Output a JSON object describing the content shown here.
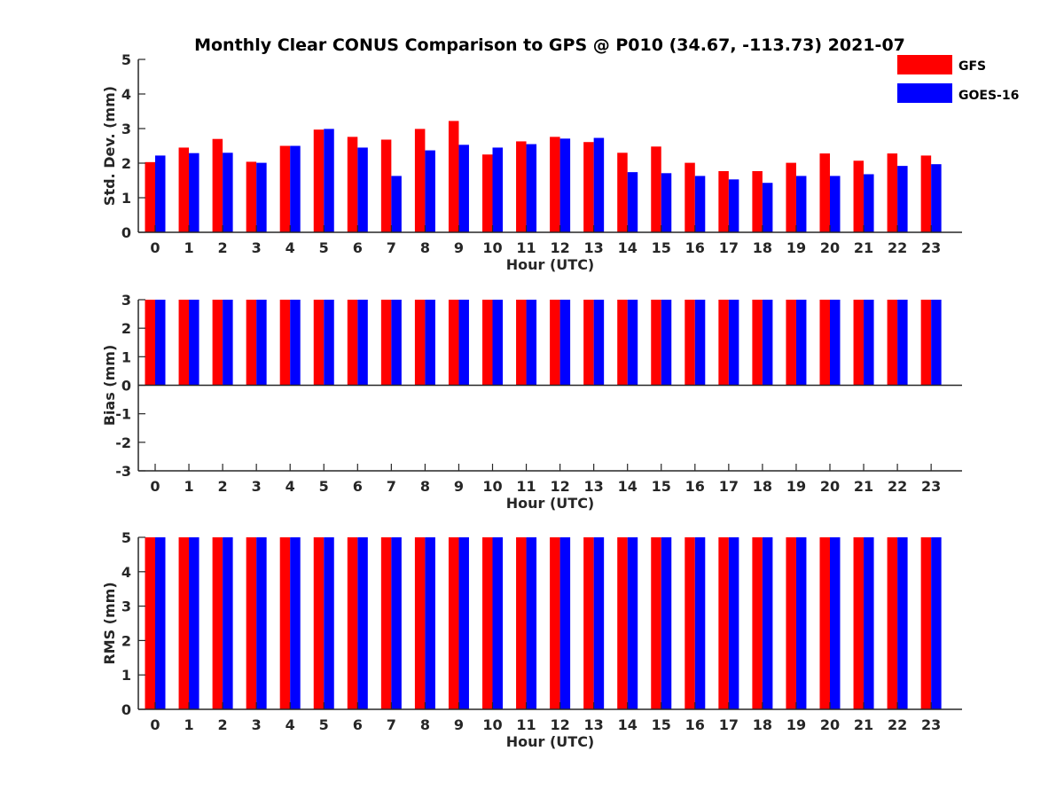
{
  "title": "Monthly Clear CONUS Comparison to GPS @ P010 (34.67, -113.73) 2021-07",
  "legend": [
    {
      "label": "GFS",
      "color": "#ff0000"
    },
    {
      "label": "GOES-16",
      "color": "#0000ff"
    }
  ],
  "chart_data": [
    {
      "type": "bar",
      "categories": [
        "0",
        "1",
        "2",
        "3",
        "4",
        "5",
        "6",
        "7",
        "8",
        "9",
        "10",
        "11",
        "12",
        "13",
        "14",
        "15",
        "16",
        "17",
        "18",
        "19",
        "20",
        "21",
        "22",
        "23"
      ],
      "xlabel": "Hour (UTC)",
      "ylabel": "Std. Dev. (mm)",
      "ylim": [
        0,
        5
      ],
      "yticks": [
        "0",
        "1",
        "2",
        "3",
        "4",
        "5"
      ],
      "series": [
        {
          "name": "GFS",
          "color": "#ff0000",
          "values": [
            2.03,
            2.45,
            2.7,
            2.04,
            2.5,
            2.97,
            2.76,
            2.68,
            2.99,
            3.22,
            2.25,
            2.63,
            2.76,
            2.61,
            2.3,
            2.48,
            2.01,
            1.77,
            1.77,
            2.01,
            2.28,
            2.07,
            2.28,
            2.22
          ]
        },
        {
          "name": "GOES-16",
          "color": "#0000ff",
          "values": [
            2.22,
            2.29,
            2.3,
            2.01,
            2.5,
            2.99,
            2.45,
            1.63,
            2.37,
            2.53,
            2.45,
            2.55,
            2.71,
            2.73,
            1.74,
            1.71,
            1.63,
            1.53,
            1.43,
            1.63,
            1.63,
            1.68,
            1.92,
            1.97
          ]
        }
      ]
    },
    {
      "type": "bar",
      "categories": [
        "0",
        "1",
        "2",
        "3",
        "4",
        "5",
        "6",
        "7",
        "8",
        "9",
        "10",
        "11",
        "12",
        "13",
        "14",
        "15",
        "16",
        "17",
        "18",
        "19",
        "20",
        "21",
        "22",
        "23"
      ],
      "xlabel": "Hour (UTC)",
      "ylabel": "Bias (mm)",
      "ylim": [
        -3,
        3
      ],
      "yticks": [
        "-3",
        "-2",
        "-1",
        "0",
        "1",
        "2",
        "3"
      ],
      "series": [
        {
          "name": "GFS",
          "color": "#ff0000",
          "values": [
            3,
            3,
            3,
            3,
            3,
            3,
            3,
            3,
            3,
            3,
            3,
            3,
            3,
            3,
            3,
            3,
            3,
            3,
            3,
            3,
            3,
            3,
            3,
            3
          ]
        },
        {
          "name": "GOES-16",
          "color": "#0000ff",
          "values": [
            3,
            3,
            3,
            3,
            3,
            3,
            3,
            3,
            3,
            3,
            3,
            3,
            3,
            3,
            3,
            3,
            3,
            3,
            3,
            3,
            3,
            3,
            3,
            3
          ]
        }
      ]
    },
    {
      "type": "bar",
      "categories": [
        "0",
        "1",
        "2",
        "3",
        "4",
        "5",
        "6",
        "7",
        "8",
        "9",
        "10",
        "11",
        "12",
        "13",
        "14",
        "15",
        "16",
        "17",
        "18",
        "19",
        "20",
        "21",
        "22",
        "23"
      ],
      "xlabel": "Hour (UTC)",
      "ylabel": "RMS (mm)",
      "ylim": [
        0,
        5
      ],
      "yticks": [
        "0",
        "1",
        "2",
        "3",
        "4",
        "5"
      ],
      "series": [
        {
          "name": "GFS",
          "color": "#ff0000",
          "values": [
            5,
            5,
            5,
            5,
            5,
            5,
            5,
            5,
            5,
            5,
            5,
            5,
            5,
            5,
            5,
            5,
            5,
            5,
            5,
            5,
            5,
            5,
            5,
            5
          ]
        },
        {
          "name": "GOES-16",
          "color": "#0000ff",
          "values": [
            5,
            5,
            5,
            5,
            5,
            5,
            5,
            5,
            5,
            5,
            5,
            5,
            5,
            5,
            5,
            5,
            5,
            5,
            5,
            5,
            5,
            5,
            5,
            5
          ]
        }
      ]
    }
  ]
}
